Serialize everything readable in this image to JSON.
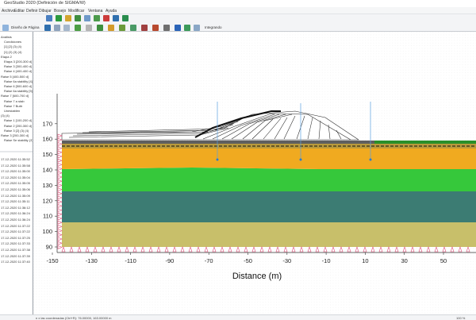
{
  "window": {
    "title": "GeoStudio 2020 (Definición de SIGMA/W)"
  },
  "menu": [
    "Archivo",
    "Editar",
    "Definir",
    "Dibujar",
    "Bosejo",
    "Modificar",
    "Ventana",
    "Ayuda"
  ],
  "toolbar": {
    "page_design_label": "Diseño de Página",
    "group_label": "Integrando"
  },
  "tree": {
    "items": [
      "Análisis",
      "Condiciones",
      "[1] [2] (3) (4)",
      "[1] (2) (3) (4)",
      "Etapa 2",
      "Etapa 3 [200-300 d]",
      "Raise 3 [300-400 d]",
      "Raise 4 [400-400 d]",
      "Raise 5 [400-500 d]",
      "Raise 6a stability [4]",
      "Raise 6 [500-600 d]",
      "Raise 6a stability [5]",
      "Raise 7 [600-700 d]",
      "Raise 7 a stab",
      "Raise 7 Buttr",
      "Unestablen",
      "(3) (4)",
      "Raise 1 [100-200 d]",
      "Raise 2 [200-300 d]",
      "Raise 3 [2] (3) (4)",
      "Raise 3 [200-300 d]",
      "Raise Se stability (3)"
    ],
    "log": [
      "17-12-2020 11:35:52",
      "17-12-2020 11:35:58",
      "17-12-2020 11:35:00",
      "17-12-2020 11:35:04",
      "17-12-2020 11:35:05",
      "17-12-2020 11:35:06",
      "17-12-2020 11:35:09",
      "17-12-2020 11:35:11",
      "17-12-2020 11:36:12",
      "17-12-2020 11:36:24",
      "17-12-2020 11:36:24",
      "17-12-2020 11:37:22",
      "17-12-2020 11:37:22",
      "17-12-2020 11:37:25",
      "17-12-2020 11:37:33",
      "17-12-2020 11:37:38",
      "17-12-2020 11:37:39",
      "17-12-2020 11:37:40"
    ]
  },
  "chart": {
    "xlabel": "Distance (m)",
    "xticks": [
      "-150",
      "-130",
      "-110",
      "-90",
      "-70",
      "-50",
      "-30",
      "-10",
      "10",
      "30",
      "50"
    ],
    "yticks": [
      "90",
      "100",
      "110",
      "120",
      "130",
      "140",
      "150",
      "160",
      "170"
    ],
    "layer_colors": {
      "base": "#c8bf6a",
      "teal": "#3c7c73",
      "green": "#36c83b",
      "orange": "#f0aa20",
      "thin_top": "#b99a3c",
      "dark_top": "#5f5f5f"
    }
  },
  "status": {
    "left": "n x las coordenadas (Ctrl+R): 76.00000, 163.00000 m",
    "zoom": "100 %"
  }
}
